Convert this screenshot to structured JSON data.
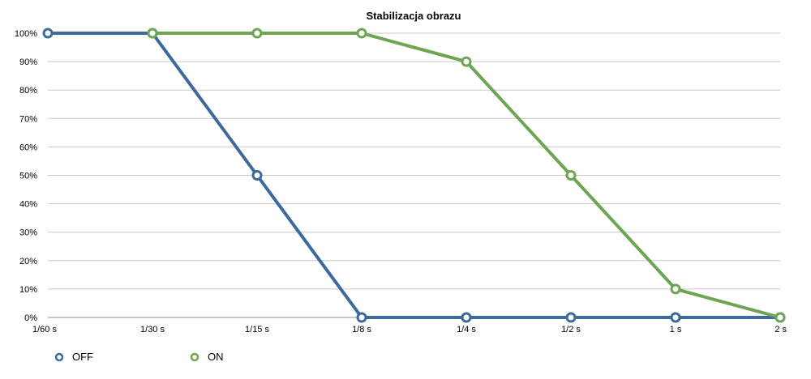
{
  "chart_data": {
    "type": "line",
    "title": "Stabilizacja obrazu",
    "categories": [
      "1/60 s",
      "1/30 s",
      "1/15 s",
      "1/8 s",
      "1/4 s",
      "1/2 s",
      "1 s",
      "2 s"
    ],
    "y_ticks": [
      "0%",
      "10%",
      "20%",
      "30%",
      "40%",
      "50%",
      "60%",
      "70%",
      "80%",
      "90%",
      "100%"
    ],
    "ylim": [
      0,
      100
    ],
    "grid": true,
    "legend_position": "bottom-left",
    "series": [
      {
        "name": "OFF",
        "color": "#3d6a9a",
        "values": [
          100,
          100,
          50,
          0,
          0,
          0,
          0,
          0
        ]
      },
      {
        "name": "ON",
        "color": "#6ea555",
        "values": [
          null,
          100,
          100,
          100,
          90,
          50,
          10,
          0
        ]
      }
    ]
  }
}
